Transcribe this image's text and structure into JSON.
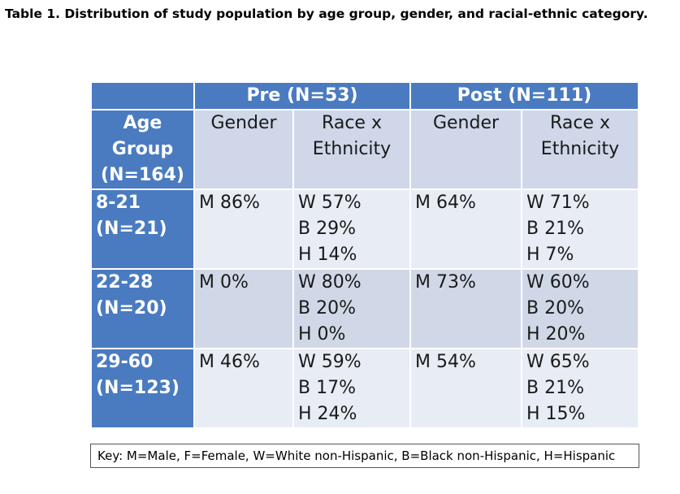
{
  "caption": "Table 1. Distribution of study population by age group, gender, and racial-ethnic category.",
  "groups": {
    "pre": "Pre (N=53)",
    "post": "Post (N=111)"
  },
  "age_header": [
    "Age",
    "Group",
    "(N=164)"
  ],
  "columns": {
    "pre_gender": "Gender",
    "pre_race": [
      "Race x",
      "Ethnicity"
    ],
    "post_gender": "Gender",
    "post_race": [
      "Race x",
      "Ethnicity"
    ]
  },
  "rows": [
    {
      "age": [
        "8-21",
        "(N=21)"
      ],
      "pre_gender": "M 86%",
      "pre_race": [
        "W 57%",
        "B 29%",
        "H 14%"
      ],
      "post_gender": "M 64%",
      "post_race": [
        "W 71%",
        "B 21%",
        "H 7%"
      ]
    },
    {
      "age": [
        "22-28",
        "(N=20)"
      ],
      "pre_gender": "M 0%",
      "pre_race": [
        "W 80%",
        "B 20%",
        "H 0%"
      ],
      "post_gender": "M 73%",
      "post_race": [
        "W 60%",
        "B 20%",
        "H 20%"
      ]
    },
    {
      "age": [
        "29-60",
        "(N=123)"
      ],
      "pre_gender": "M 46%",
      "pre_race": [
        "W 59%",
        "B 17%",
        "H 24%"
      ],
      "post_gender": "M 54%",
      "post_race": [
        "W 65%",
        "B 21%",
        "H 15%"
      ]
    }
  ],
  "key": "Key: M=Male, F=Female, W=White non-Hispanic, B=Black non-Hispanic, H=Hispanic",
  "colors": {
    "header_blue": "#4a7bc0",
    "subheader": "#cfd7e8",
    "row_light": "#e8ecf4",
    "row_dark": "#d0d8e8"
  }
}
